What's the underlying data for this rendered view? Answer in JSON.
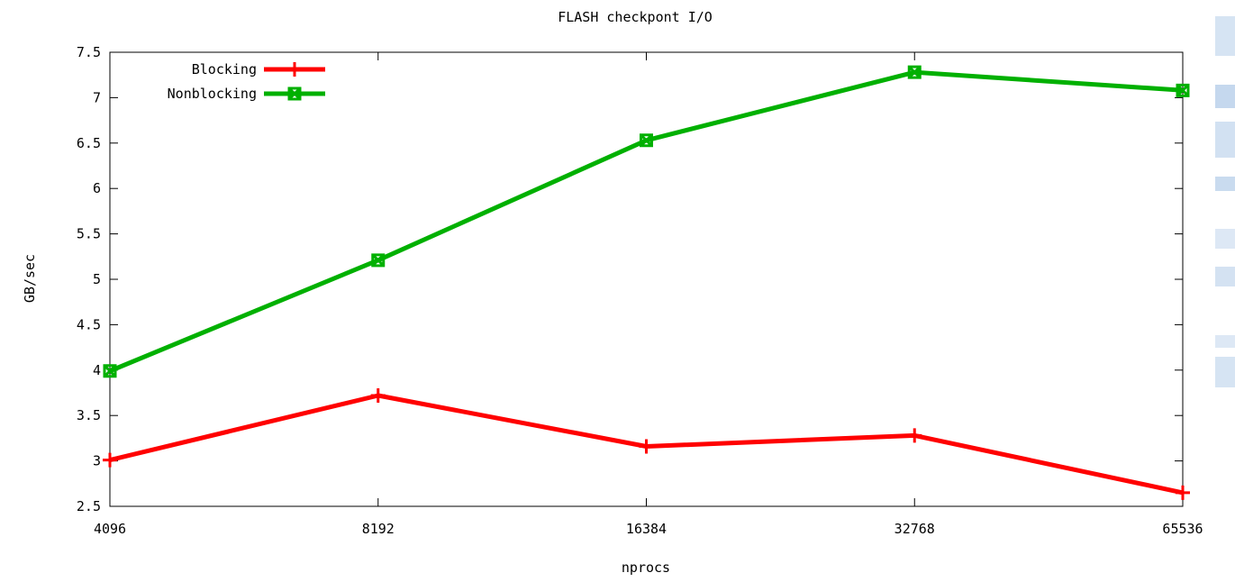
{
  "chart_data": {
    "type": "line",
    "title": "FLASH checkpont I/O",
    "xlabel": "nprocs",
    "ylabel": "GB/sec",
    "x_scale": "log2",
    "x": [
      4096,
      8192,
      16384,
      32768,
      65536
    ],
    "x_tick_labels": [
      "4096",
      "8192",
      "16384",
      "32768",
      "65536"
    ],
    "ylim": [
      2.5,
      7.5
    ],
    "y_ticks": [
      2.5,
      3,
      3.5,
      4,
      4.5,
      5,
      5.5,
      6,
      6.5,
      7,
      7.5
    ],
    "y_tick_labels": [
      "2.5",
      "3",
      "3.5",
      "4",
      "4.5",
      "5",
      "5.5",
      "6",
      "6.5",
      "7",
      "7.5"
    ],
    "grid": false,
    "legend_position": "top-left",
    "series": [
      {
        "name": "Blocking",
        "color": "#ff0000",
        "marker": "plus",
        "values": [
          3.01,
          3.72,
          3.16,
          3.28,
          2.65
        ]
      },
      {
        "name": "Nonblocking",
        "color": "#00b000",
        "marker": "boxed-x",
        "values": [
          3.99,
          5.21,
          6.53,
          7.28,
          7.08
        ]
      }
    ]
  }
}
